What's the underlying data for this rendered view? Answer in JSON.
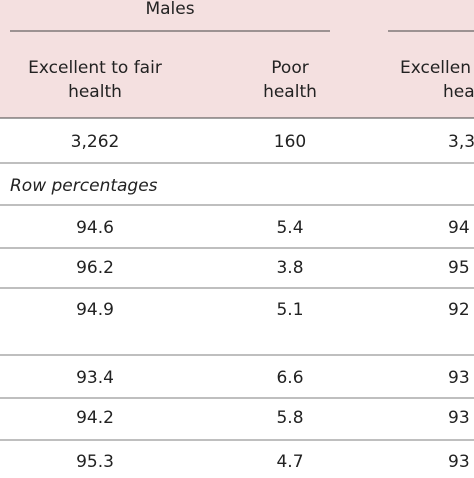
{
  "table": {
    "group": "Males",
    "columns": [
      [
        "Excellent to fair",
        "health"
      ],
      [
        "Poor",
        "health"
      ],
      [
        "Excellen",
        "hea"
      ]
    ],
    "rows": [
      [
        "3,262",
        "160",
        "3,3"
      ],
      [
        "Row percentages"
      ],
      [
        "94.6",
        "5.4",
        "94"
      ],
      [
        "96.2",
        "3.8",
        "95"
      ],
      [
        "94.9",
        "5.1",
        "92"
      ],
      [
        "93.4",
        "6.6",
        "93"
      ],
      [
        "94.2",
        "5.8",
        "93"
      ],
      [
        "95.3",
        "4.7",
        "93"
      ]
    ]
  }
}
